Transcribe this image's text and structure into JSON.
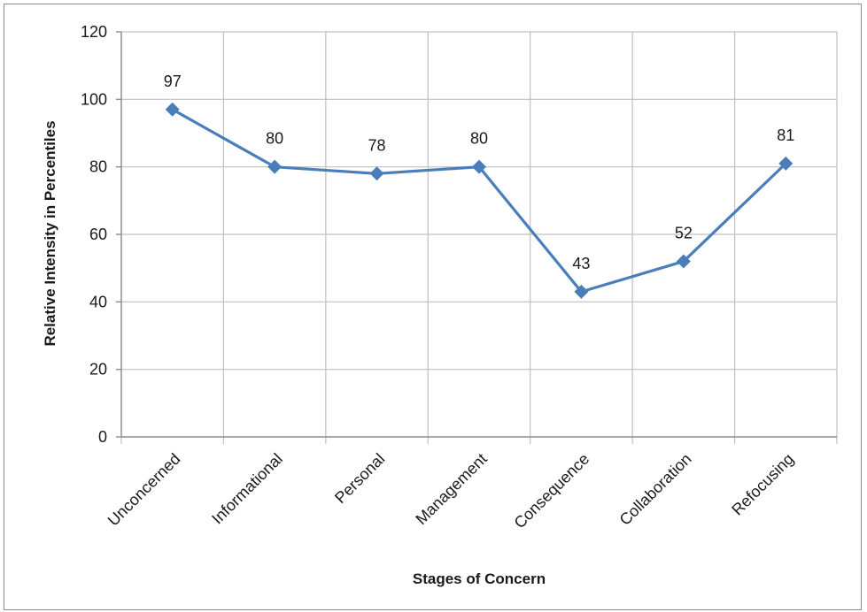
{
  "chart_data": {
    "type": "line",
    "categories": [
      "Unconcerned",
      "Informational",
      "Personal",
      "Management",
      "Consequence",
      "Collaboration",
      "Refocusing"
    ],
    "series": [
      {
        "values": [
          97,
          80,
          78,
          80,
          43,
          52,
          81
        ],
        "color": "#4a7ebb",
        "marker": "diamond"
      }
    ],
    "data_labels": [
      "97",
      "80",
      "78",
      "80",
      "43",
      "52",
      "81"
    ],
    "xlabel": "Stages of Concern",
    "ylabel": "Relative Intensity in Percentiles",
    "ylim": [
      0,
      120
    ],
    "y_ticks": [
      0,
      20,
      40,
      60,
      80,
      100,
      120
    ],
    "grid": true,
    "legend": "none",
    "colors": {
      "line": "#4a7ebb",
      "grid": "#c0c0c0",
      "frame": "#8c8c8c"
    }
  }
}
